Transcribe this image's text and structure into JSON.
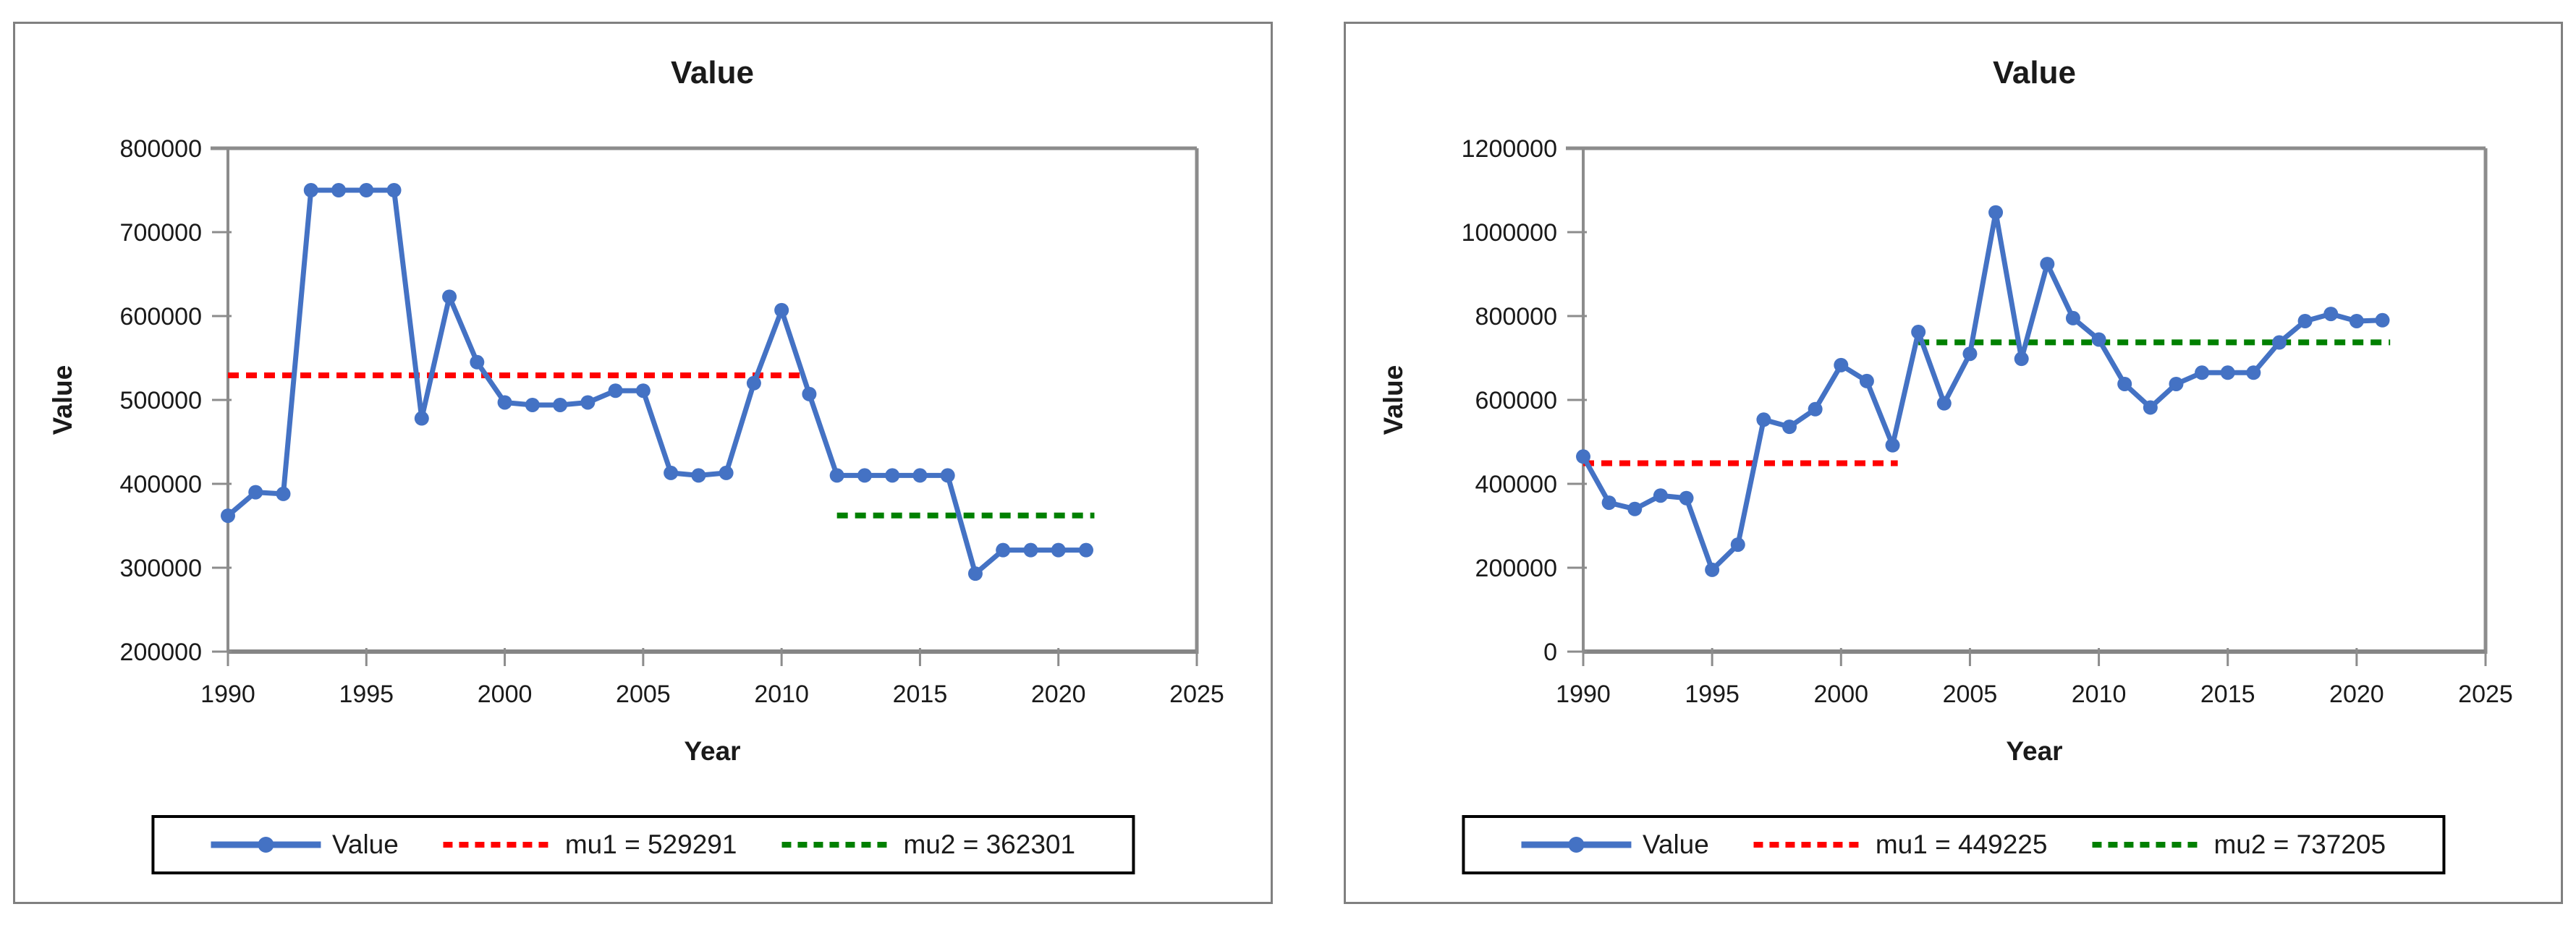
{
  "colors": {
    "line": "#4472C4",
    "mu1": "#FF0000",
    "mu2": "#008000",
    "axis": "#8C8C8C",
    "panel_border": "#808080",
    "text": "#1A1A1A"
  },
  "chart_data": [
    {
      "type": "line",
      "title": "Value",
      "xlabel": "Year",
      "ylabel": "Value",
      "xlim": [
        1990,
        2025
      ],
      "ylim": [
        200000,
        800000
      ],
      "x_ticks": [
        1990,
        1995,
        2000,
        2005,
        2010,
        2015,
        2020,
        2025
      ],
      "y_ticks": [
        200000,
        300000,
        400000,
        500000,
        600000,
        700000,
        800000
      ],
      "grid": false,
      "legend_position": "bottom",
      "x": [
        1990,
        1991,
        1992,
        1993,
        1994,
        1995,
        1996,
        1997,
        1998,
        1999,
        2000,
        2001,
        2002,
        2003,
        2004,
        2005,
        2006,
        2007,
        2008,
        2009,
        2010,
        2011,
        2012,
        2013,
        2014,
        2015,
        2016,
        2017,
        2018,
        2019,
        2020,
        2021
      ],
      "series": [
        {
          "name": "Value",
          "color_key": "line",
          "values": [
            362000,
            390000,
            388000,
            750000,
            750000,
            750000,
            750000,
            478000,
            623000,
            545000,
            497000,
            494000,
            494000,
            497000,
            511000,
            511000,
            413000,
            410000,
            413000,
            520000,
            607000,
            507000,
            410000,
            410000,
            410000,
            410000,
            410000,
            293000,
            321000,
            321000,
            321000,
            321000
          ]
        }
      ],
      "mu_lines": [
        {
          "name": "mu1 = 529291",
          "value": 529291,
          "x_start": 1990,
          "x_end": 2010.8,
          "color_key": "mu1"
        },
        {
          "name": "mu2 = 362301",
          "value": 362301,
          "x_start": 2012,
          "x_end": 2021.3,
          "color_key": "mu2"
        }
      ]
    },
    {
      "type": "line",
      "title": "Value",
      "xlabel": "Year",
      "ylabel": "Value",
      "xlim": [
        1990,
        2025
      ],
      "ylim": [
        0,
        1200000
      ],
      "x_ticks": [
        1990,
        1995,
        2000,
        2005,
        2010,
        2015,
        2020,
        2025
      ],
      "y_ticks": [
        0,
        200000,
        400000,
        600000,
        800000,
        1000000,
        1200000
      ],
      "grid": false,
      "legend_position": "bottom",
      "x": [
        1990,
        1991,
        1992,
        1993,
        1994,
        1995,
        1996,
        1997,
        1998,
        1999,
        2000,
        2001,
        2002,
        2003,
        2004,
        2005,
        2006,
        2007,
        2008,
        2009,
        2010,
        2011,
        2012,
        2013,
        2014,
        2015,
        2016,
        2017,
        2018,
        2019,
        2020,
        2021
      ],
      "series": [
        {
          "name": "Value",
          "color_key": "line",
          "values": [
            465000,
            355000,
            340000,
            372000,
            366000,
            195000,
            255000,
            553000,
            536000,
            578000,
            683000,
            645000,
            492000,
            762000,
            592000,
            710000,
            1047000,
            698000,
            924000,
            795000,
            744000,
            638000,
            582000,
            638000,
            665000,
            665000,
            665000,
            737000,
            788000,
            805000,
            788000,
            790000
          ]
        }
      ],
      "mu_lines": [
        {
          "name": "mu1 = 449225",
          "value": 449225,
          "x_start": 1990,
          "x_end": 2002.2,
          "color_key": "mu1"
        },
        {
          "name": "mu2 = 737205",
          "value": 737205,
          "x_start": 2003,
          "x_end": 2021.3,
          "color_key": "mu2"
        }
      ]
    }
  ]
}
